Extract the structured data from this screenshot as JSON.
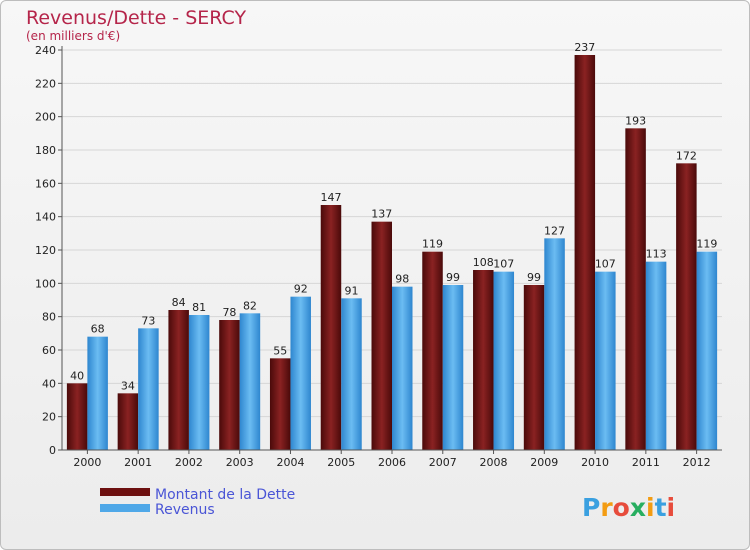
{
  "chart_data": {
    "type": "bar",
    "title": "Revenus/Dette - SERCY",
    "subtitle": "(en milliers d'€)",
    "xlabel": "",
    "ylabel": "",
    "categories": [
      "2000",
      "2001",
      "2002",
      "2003",
      "2004",
      "2005",
      "2006",
      "2007",
      "2008",
      "2009",
      "2010",
      "2011",
      "2012"
    ],
    "series": [
      {
        "name": "Montant de la Dette",
        "color": "#6d1010",
        "values": [
          40,
          34,
          84,
          78,
          55,
          147,
          137,
          119,
          108,
          99,
          237,
          193,
          172
        ]
      },
      {
        "name": "Revenus",
        "color": "#4fa8e8",
        "values": [
          68,
          73,
          81,
          82,
          92,
          91,
          98,
          99,
          107,
          127,
          107,
          113,
          119
        ]
      }
    ],
    "ylim": [
      0,
      240
    ],
    "yticks": [
      0,
      20,
      40,
      60,
      80,
      100,
      120,
      140,
      160,
      180,
      200,
      220,
      240
    ],
    "grid": true,
    "legend": "bottom-left"
  },
  "logo": {
    "text": "Proxiti"
  }
}
